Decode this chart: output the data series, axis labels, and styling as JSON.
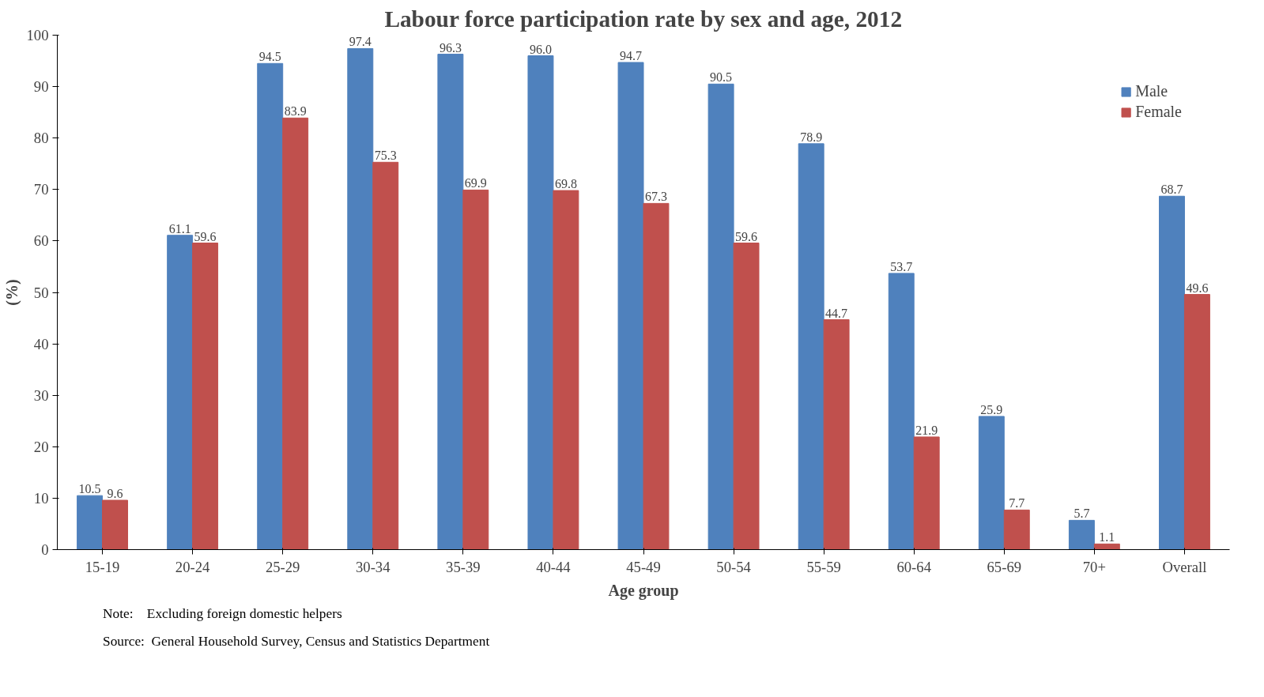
{
  "chart_data": {
    "type": "bar",
    "title": "Labour force participation rate by sex and age, 2012",
    "xlabel": "Age group",
    "ylabel": "(%)",
    "categories": [
      "15-19",
      "20-24",
      "25-29",
      "30-34",
      "35-39",
      "40-44",
      "45-49",
      "50-54",
      "55-59",
      "60-64",
      "65-69",
      "70+",
      "Overall"
    ],
    "series": [
      {
        "name": "Male",
        "color": "#4f81bd",
        "values": [
          10.5,
          61.1,
          94.5,
          97.4,
          96.3,
          96.0,
          94.7,
          90.5,
          78.9,
          53.7,
          25.9,
          5.7,
          68.7
        ],
        "value_labels": [
          "10.5",
          "61.1",
          "94.5",
          "97.4",
          "96.3",
          "96.0",
          "94.7",
          "90.5",
          "78.9",
          "53.7",
          "25.9",
          "5.7",
          "68.7"
        ]
      },
      {
        "name": "Female",
        "color": "#c0504d",
        "values": [
          9.6,
          59.6,
          83.9,
          75.3,
          69.9,
          69.8,
          67.3,
          59.6,
          44.7,
          21.9,
          7.7,
          1.1,
          49.6
        ],
        "value_labels": [
          "9.6",
          "59.6",
          "83.9",
          "75.3",
          "69.9",
          "69.8",
          "67.3",
          "59.6",
          "44.7",
          "21.9",
          "7.7",
          "1.1",
          "49.6"
        ]
      }
    ],
    "ylim": [
      0,
      100
    ],
    "yticks": [
      0,
      10,
      20,
      30,
      40,
      50,
      60,
      70,
      80,
      90,
      100
    ],
    "legend": "top right",
    "grid": false,
    "annotations": [
      "Note:    Excluding foreign domestic helpers",
      "Source:  General Household Survey, Census and Statistics Department"
    ]
  }
}
